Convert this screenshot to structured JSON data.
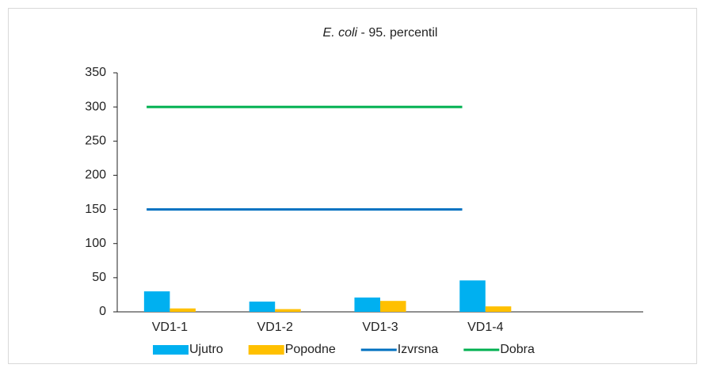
{
  "chart_data": {
    "type": "bar",
    "title": {
      "italic": "E. coli",
      "rest": " - 95. percentil"
    },
    "categories": [
      "VD1-1",
      "VD1-2",
      "VD1-3",
      "VD1-4",
      null
    ],
    "series": [
      {
        "name": "Ujutro",
        "type": "bar",
        "color": "#00b0f0",
        "values": [
          30,
          15,
          21,
          46,
          null
        ]
      },
      {
        "name": "Popodne",
        "type": "bar",
        "color": "#ffc000",
        "values": [
          5,
          4,
          16,
          8,
          null
        ]
      },
      {
        "name": "Izvrsna",
        "type": "line",
        "color": "#0070c0",
        "values": [
          150,
          150,
          150,
          150,
          null
        ]
      },
      {
        "name": "Dobra",
        "type": "line",
        "color": "#00b050",
        "values": [
          300,
          300,
          300,
          300,
          null
        ]
      }
    ],
    "ylim": [
      0,
      350
    ],
    "yticks": [
      0,
      50,
      100,
      150,
      200,
      250,
      300,
      350
    ],
    "grid": false,
    "legend": "bottom"
  }
}
